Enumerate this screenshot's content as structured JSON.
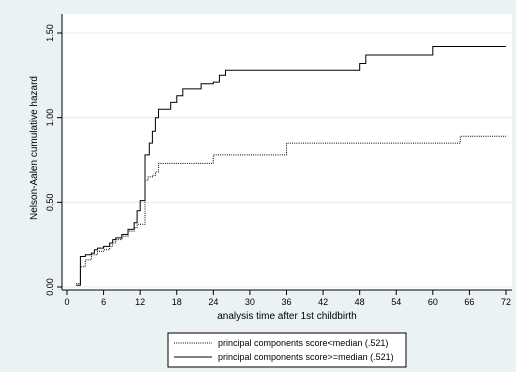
{
  "chart_data": {
    "type": "line",
    "step": true,
    "xlabel": "analysis time after 1st childbirth",
    "ylabel": "Nelson-Aalen cumulative hazard",
    "xlim": [
      0,
      72
    ],
    "ylim": [
      0,
      1.5
    ],
    "xticks": [
      0,
      6,
      12,
      18,
      24,
      30,
      36,
      42,
      48,
      54,
      60,
      66,
      72
    ],
    "yticks": [
      0,
      0.5,
      1.0,
      1.5
    ],
    "ytick_labels": [
      "0.00",
      "0.50",
      "1.00",
      "1.50"
    ],
    "grid": true,
    "grid_axis": "y",
    "legend_position": "bottom",
    "series": [
      {
        "name": "principal components score<median (.521)",
        "style": "dotted",
        "points": [
          [
            1.5,
            0.02
          ],
          [
            2.2,
            0.12
          ],
          [
            3,
            0.16
          ],
          [
            4,
            0.19
          ],
          [
            5,
            0.21
          ],
          [
            6,
            0.22
          ],
          [
            7,
            0.24
          ],
          [
            7.5,
            0.26
          ],
          [
            8,
            0.28
          ],
          [
            9,
            0.3
          ],
          [
            10,
            0.33
          ],
          [
            11,
            0.35
          ],
          [
            11.5,
            0.37
          ],
          [
            12,
            0.37
          ],
          [
            12.8,
            0.63
          ],
          [
            13.3,
            0.65
          ],
          [
            14,
            0.66
          ],
          [
            14.5,
            0.68
          ],
          [
            15,
            0.73
          ],
          [
            17,
            0.73
          ],
          [
            24,
            0.78
          ],
          [
            30,
            0.78
          ],
          [
            36,
            0.85
          ],
          [
            48,
            0.85
          ],
          [
            60,
            0.85
          ],
          [
            64.5,
            0.89
          ],
          [
            72,
            0.89
          ]
        ]
      },
      {
        "name": "principal components score>=median (.521)",
        "style": "solid",
        "points": [
          [
            1.5,
            0.01
          ],
          [
            2.2,
            0.18
          ],
          [
            3,
            0.19
          ],
          [
            4,
            0.2
          ],
          [
            4.5,
            0.22
          ],
          [
            5,
            0.23
          ],
          [
            6,
            0.24
          ],
          [
            7,
            0.26
          ],
          [
            7.5,
            0.28
          ],
          [
            8,
            0.29
          ],
          [
            9,
            0.31
          ],
          [
            10,
            0.34
          ],
          [
            11,
            0.38
          ],
          [
            11.5,
            0.45
          ],
          [
            12,
            0.51
          ],
          [
            12.8,
            0.78
          ],
          [
            13.5,
            0.85
          ],
          [
            14,
            0.92
          ],
          [
            14.5,
            1.0
          ],
          [
            15,
            1.05
          ],
          [
            17,
            1.09
          ],
          [
            18,
            1.13
          ],
          [
            19,
            1.17
          ],
          [
            22,
            1.2
          ],
          [
            24,
            1.21
          ],
          [
            25,
            1.25
          ],
          [
            26,
            1.28
          ],
          [
            30,
            1.28
          ],
          [
            36,
            1.28
          ],
          [
            48,
            1.32
          ],
          [
            49,
            1.37
          ],
          [
            60,
            1.42
          ],
          [
            72,
            1.42
          ]
        ]
      }
    ]
  }
}
